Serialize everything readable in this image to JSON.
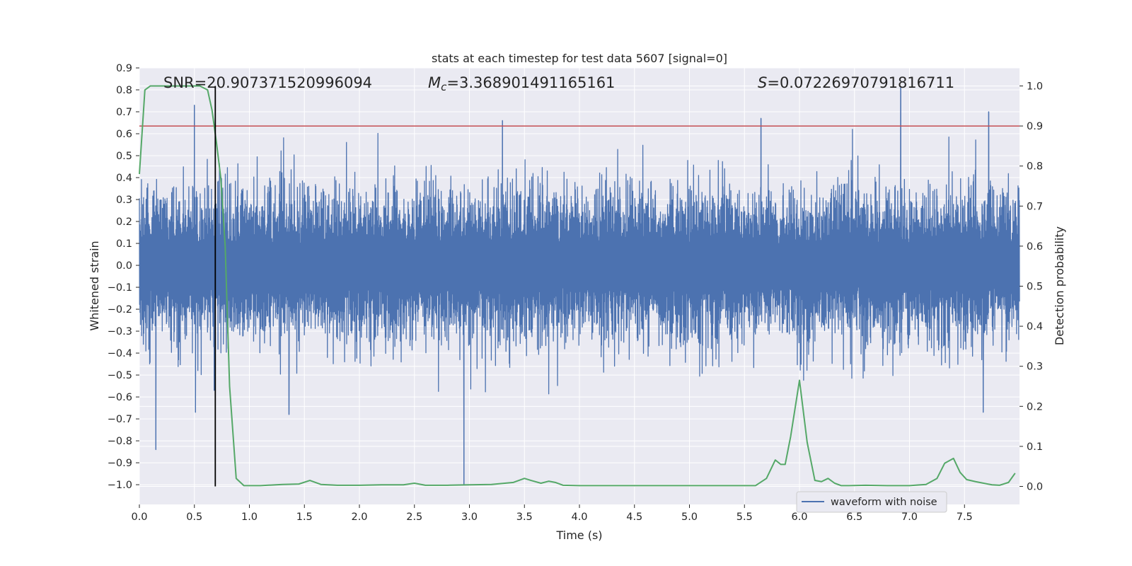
{
  "chart_data": {
    "type": "line",
    "title": "stats at each timestep for test data 5607 [signal=0]",
    "xlabel": "Time (s)",
    "ylabel_left": "Whitened strain",
    "ylabel_right": "Detection probability",
    "xlim": [
      0.0,
      8.0
    ],
    "ylim_left": [
      -1.09,
      0.9
    ],
    "ylim_right": [
      -0.045,
      1.045
    ],
    "x_ticks": [
      0.0,
      0.5,
      1.0,
      1.5,
      2.0,
      2.5,
      3.0,
      3.5,
      4.0,
      4.5,
      5.0,
      5.5,
      6.0,
      6.5,
      7.0,
      7.5
    ],
    "x_tick_labels": [
      "0.0",
      "0.5",
      "1.0",
      "1.5",
      "2.0",
      "2.5",
      "3.0",
      "3.5",
      "4.0",
      "4.5",
      "5.0",
      "5.5",
      "6.0",
      "6.5",
      "7.0",
      "7.5"
    ],
    "y_left_ticks": [
      0.9,
      0.8,
      0.7,
      0.6,
      0.5,
      0.4,
      0.3,
      0.2,
      0.1,
      0.0,
      -0.1,
      -0.2,
      -0.3,
      -0.4,
      -0.5,
      -0.6,
      -0.7,
      -0.8,
      -0.9,
      -1.0
    ],
    "y_left_tick_labels": [
      "0.9",
      "0.8",
      "0.7",
      "0.6",
      "0.5",
      "0.4",
      "0.3",
      "0.2",
      "0.1",
      "0.0",
      "−0.1",
      "−0.2",
      "−0.3",
      "−0.4",
      "−0.5",
      "−0.6",
      "−0.7",
      "−0.8",
      "−0.9",
      "−1.0"
    ],
    "y_right_ticks": [
      1.0,
      0.9,
      0.8,
      0.7,
      0.6,
      0.5,
      0.4,
      0.3,
      0.2,
      0.1,
      0.0
    ],
    "y_right_tick_labels": [
      "1.0",
      "0.9",
      "0.8",
      "0.7",
      "0.6",
      "0.5",
      "0.4",
      "0.3",
      "0.2",
      "0.1",
      "0.0"
    ],
    "annotations": {
      "snr": "SNR=20.907371520996094",
      "mc_symbol": "M",
      "mc_subscript": "c",
      "mc_value": "=3.368901491165161",
      "s_symbol": "S",
      "s_value": "=0.07226970791816711"
    },
    "threshold_right": 0.9,
    "marker_time": 0.69,
    "series": [
      {
        "name": "waveform with noise",
        "axis": "left",
        "color": "#4c72b0",
        "band_std": 0.11,
        "spikes": [
          {
            "x": 0.15,
            "y": -0.84
          },
          {
            "x": 0.5,
            "y": 0.73
          },
          {
            "x": 0.51,
            "y": -0.67
          },
          {
            "x": 0.68,
            "y": -0.57
          },
          {
            "x": 1.36,
            "y": -0.68
          },
          {
            "x": 2.95,
            "y": -1.0
          },
          {
            "x": 3.3,
            "y": 0.66
          },
          {
            "x": 5.65,
            "y": 0.67
          },
          {
            "x": 6.92,
            "y": 0.81
          },
          {
            "x": 7.67,
            "y": -0.67
          },
          {
            "x": 7.72,
            "y": 0.7
          }
        ]
      },
      {
        "name": "detection probability",
        "axis": "right",
        "color": "#55a868",
        "x": [
          0.0,
          0.05,
          0.1,
          0.15,
          0.3,
          0.45,
          0.55,
          0.62,
          0.66,
          0.7,
          0.74,
          0.78,
          0.82,
          0.88,
          0.95,
          1.1,
          1.3,
          1.45,
          1.55,
          1.65,
          1.8,
          2.0,
          2.2,
          2.4,
          2.5,
          2.6,
          2.8,
          3.0,
          3.2,
          3.4,
          3.5,
          3.56,
          3.65,
          3.72,
          3.78,
          3.85,
          4.0,
          4.2,
          4.4,
          4.6,
          4.8,
          5.0,
          5.2,
          5.4,
          5.6,
          5.7,
          5.78,
          5.83,
          5.87,
          5.92,
          6.0,
          6.07,
          6.14,
          6.2,
          6.26,
          6.32,
          6.38,
          6.45,
          6.6,
          6.8,
          7.0,
          7.15,
          7.25,
          7.32,
          7.4,
          7.46,
          7.52,
          7.6,
          7.75,
          7.82,
          7.9,
          7.96
        ],
        "y": [
          0.78,
          0.99,
          1.0,
          1.0,
          1.0,
          1.0,
          1.0,
          0.99,
          0.94,
          0.86,
          0.77,
          0.6,
          0.25,
          0.02,
          0.002,
          0.002,
          0.005,
          0.006,
          0.015,
          0.005,
          0.003,
          0.003,
          0.004,
          0.004,
          0.008,
          0.003,
          0.003,
          0.004,
          0.005,
          0.01,
          0.02,
          0.015,
          0.008,
          0.013,
          0.01,
          0.003,
          0.002,
          0.002,
          0.002,
          0.002,
          0.002,
          0.002,
          0.002,
          0.002,
          0.002,
          0.02,
          0.066,
          0.055,
          0.055,
          0.125,
          0.265,
          0.11,
          0.015,
          0.012,
          0.02,
          0.008,
          0.002,
          0.002,
          0.003,
          0.002,
          0.002,
          0.005,
          0.02,
          0.058,
          0.07,
          0.035,
          0.017,
          0.012,
          0.004,
          0.003,
          0.01,
          0.033
        ]
      }
    ],
    "legend": {
      "position": "lower-right",
      "entries": [
        {
          "label": "waveform with noise",
          "color": "#4c72b0"
        }
      ]
    },
    "colors": {
      "axes_bg": "#eaeaf2",
      "grid": "#ffffff",
      "threshold": "#c44e52",
      "marker": "#000000",
      "text": "#262626"
    }
  }
}
